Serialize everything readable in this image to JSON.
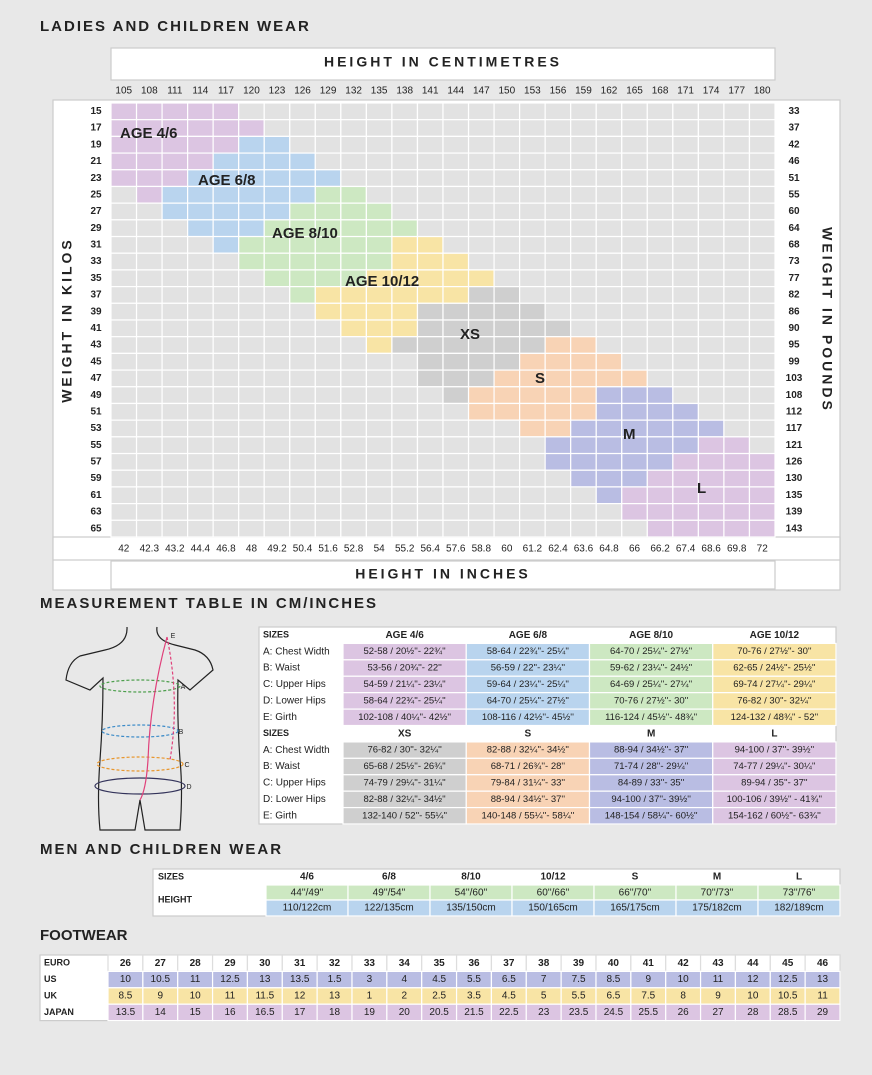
{
  "ladies": {
    "title": "LADIES AND CHILDREN WEAR",
    "height_cm_label": "HEIGHT IN CENTIMETRES",
    "height_in_label": "HEIGHT IN INCHES",
    "weight_kg_label": "WEIGHT IN KILOS",
    "weight_lb_label": "WEIGHT IN POUNDS",
    "heights_cm": [
      "105",
      "108",
      "111",
      "114",
      "117",
      "120",
      "123",
      "126",
      "129",
      "132",
      "135",
      "138",
      "141",
      "144",
      "147",
      "150",
      "153",
      "156",
      "159",
      "162",
      "165",
      "168",
      "171",
      "174",
      "177",
      "180"
    ],
    "heights_in": [
      "42",
      "42.3",
      "43.2",
      "44.4",
      "46.8",
      "48",
      "49.2",
      "50.4",
      "51.6",
      "52.8",
      "54",
      "55.2",
      "56.4",
      "57.6",
      "58.8",
      "60",
      "61.2",
      "62.4",
      "63.6",
      "64.8",
      "66",
      "66.2",
      "67.4",
      "68.6",
      "69.8",
      "72"
    ],
    "weights_kg": [
      "15",
      "17",
      "19",
      "21",
      "23",
      "25",
      "27",
      "29",
      "31",
      "33",
      "35",
      "37",
      "39",
      "41",
      "43",
      "45",
      "47",
      "49",
      "51",
      "53",
      "55",
      "57",
      "59",
      "61",
      "63",
      "65"
    ],
    "weights_lb": [
      "33",
      "37",
      "42",
      "46",
      "51",
      "55",
      "60",
      "64",
      "68",
      "73",
      "77",
      "82",
      "86",
      "90",
      "95",
      "99",
      "103",
      "108",
      "112",
      "117",
      "121",
      "126",
      "130",
      "135",
      "139",
      "143"
    ],
    "zones": [
      {
        "label": "AGE 4/6",
        "color": "#dcc5e2"
      },
      {
        "label": "AGE 6/8",
        "color": "#b9d4ee"
      },
      {
        "label": "AGE 8/10",
        "color": "#cde8c2"
      },
      {
        "label": "AGE 10/12",
        "color": "#f8e4a5"
      },
      {
        "label": "XS",
        "color": "#cfcfcf"
      },
      {
        "label": "S",
        "color": "#f8d3b5"
      },
      {
        "label": "M",
        "color": "#b9bde3"
      },
      {
        "label": "L",
        "color": "#dcc5e2"
      }
    ]
  },
  "measurements": {
    "title": "MEASUREMENT TABLE IN CM/INCHES",
    "figure_labels": [
      "A",
      "B",
      "C",
      "D",
      "E"
    ],
    "tables": [
      {
        "header": "SIZES",
        "columns": [
          {
            "name": "AGE 4/6",
            "color": "#dcc5e2"
          },
          {
            "name": "AGE 6/8",
            "color": "#b9d4ee"
          },
          {
            "name": "AGE 8/10",
            "color": "#cde8c2"
          },
          {
            "name": "AGE 10/12",
            "color": "#f8e4a5"
          }
        ],
        "rows": [
          {
            "label": "A: Chest Width",
            "color": "#4c9e4c",
            "values": [
              "52-58 / 20½''- 22¾''",
              "58-64 / 22¾''- 25¼''",
              "64-70 / 25¼''- 27½''",
              "70-76 / 27½''- 30''"
            ]
          },
          {
            "label": "B: Waist",
            "color": "#3a8ac8",
            "values": [
              "53-56 / 20¾''- 22''",
              "56-59 / 22''- 23¼''",
              "59-62 / 23¼''- 24½''",
              "62-65 / 24½''- 25½''"
            ]
          },
          {
            "label": "C: Upper Hips",
            "color": "#e8962c",
            "values": [
              "54-59 / 21¼''- 23¼''",
              "59-64 / 23¼''- 25¼''",
              "64-69 / 25¼''- 27¼''",
              "69-74 / 27¼''- 29¼''"
            ]
          },
          {
            "label": "D: Lower Hips",
            "color": "#33335a",
            "values": [
              "58-64 / 22¾''- 25¼''",
              "64-70 / 25¼''- 27½''",
              "70-76 / 27½''- 30''",
              "76-82 / 30''- 32¼''"
            ]
          },
          {
            "label": "E: Girth",
            "color": "#e0407a",
            "values": [
              "102-108 / 40¼''- 42½''",
              "108-116 / 42½''- 45½''",
              "116-124 / 45½''- 48¾''",
              "124-132 / 48¾'' - 52''"
            ]
          }
        ]
      },
      {
        "header": "SIZES",
        "columns": [
          {
            "name": "XS",
            "color": "#cfcfcf"
          },
          {
            "name": "S",
            "color": "#f8d3b5"
          },
          {
            "name": "M",
            "color": "#b9bde3"
          },
          {
            "name": "L",
            "color": "#dcc5e2"
          }
        ],
        "rows": [
          {
            "label": "A: Chest Width",
            "color": "#4c9e4c",
            "values": [
              "76-82 / 30''- 32¼''",
              "82-88 / 32¼''- 34½''",
              "88-94 / 34½''- 37''",
              "94-100 / 37''- 39½''"
            ]
          },
          {
            "label": "B: Waist",
            "color": "#3a8ac8",
            "values": [
              "65-68 / 25½''- 26¾''",
              "68-71 / 26¾''- 28''",
              "71-74 / 28''- 29¼''",
              "74-77 / 29¼''- 30¼''"
            ]
          },
          {
            "label": "C: Upper Hips",
            "color": "#e8962c",
            "values": [
              "74-79 / 29¼''- 31¼''",
              "79-84 / 31¼''- 33''",
              "84-89 / 33''- 35''",
              "89-94 / 35''- 37''"
            ]
          },
          {
            "label": "D: Lower Hips",
            "color": "#33335a",
            "values": [
              "82-88 / 32¼''- 34½''",
              "88-94 / 34½''- 37''",
              "94-100 / 37''- 39½''",
              "100-106 / 39½'' - 41¾''"
            ]
          },
          {
            "label": "E: Girth",
            "color": "#e0407a",
            "values": [
              "132-140 / 52''- 55¼''",
              "140-148 / 55¼''- 58¼''",
              "148-154 / 58¼''- 60½''",
              "154-162 / 60½''- 63¾''"
            ]
          }
        ]
      }
    ]
  },
  "men": {
    "title": "MEN AND CHILDREN WEAR",
    "sizes_label": "SIZES",
    "height_label": "HEIGHT",
    "inch_color": "#cde8c2",
    "cm_color": "#b9d4ee",
    "columns": [
      {
        "size": "4/6",
        "inches": "44''/49''",
        "cm": "110/122cm"
      },
      {
        "size": "6/8",
        "inches": "49''/54''",
        "cm": "122/135cm"
      },
      {
        "size": "8/10",
        "inches": "54''/60''",
        "cm": "135/150cm"
      },
      {
        "size": "10/12",
        "inches": "60''/66''",
        "cm": "150/165cm"
      },
      {
        "size": "S",
        "inches": "66''/70''",
        "cm": "165/175cm"
      },
      {
        "size": "M",
        "inches": "70''/73''",
        "cm": "175/182cm"
      },
      {
        "size": "L",
        "inches": "73''/76''",
        "cm": "182/189cm"
      }
    ]
  },
  "footwear": {
    "title": "FOOTWEAR",
    "rows": [
      {
        "label": "EURO",
        "color": "#ffffff",
        "values": [
          "26",
          "27",
          "28",
          "29",
          "30",
          "31",
          "32",
          "33",
          "34",
          "35",
          "36",
          "37",
          "38",
          "39",
          "40",
          "41",
          "42",
          "43",
          "44",
          "45",
          "46"
        ]
      },
      {
        "label": "US",
        "color": "#b9bde3",
        "values": [
          "10",
          "10.5",
          "11",
          "12.5",
          "13",
          "13.5",
          "1.5",
          "3",
          "4",
          "4.5",
          "5.5",
          "6.5",
          "7",
          "7.5",
          "8.5",
          "9",
          "10",
          "11",
          "12",
          "12.5",
          "13"
        ]
      },
      {
        "label": "UK",
        "color": "#f8e4a5",
        "values": [
          "8.5",
          "9",
          "10",
          "11",
          "11.5",
          "12",
          "13",
          "1",
          "2",
          "2.5",
          "3.5",
          "4.5",
          "5",
          "5.5",
          "6.5",
          "7.5",
          "8",
          "9",
          "10",
          "10.5",
          "11"
        ]
      },
      {
        "label": "JAPAN",
        "color": "#dcc5e2",
        "values": [
          "13.5",
          "14",
          "15",
          "16",
          "16.5",
          "17",
          "18",
          "19",
          "20",
          "20.5",
          "21.5",
          "22.5",
          "23",
          "23.5",
          "24.5",
          "25.5",
          "26",
          "27",
          "28",
          "28.5",
          "29"
        ]
      }
    ]
  }
}
